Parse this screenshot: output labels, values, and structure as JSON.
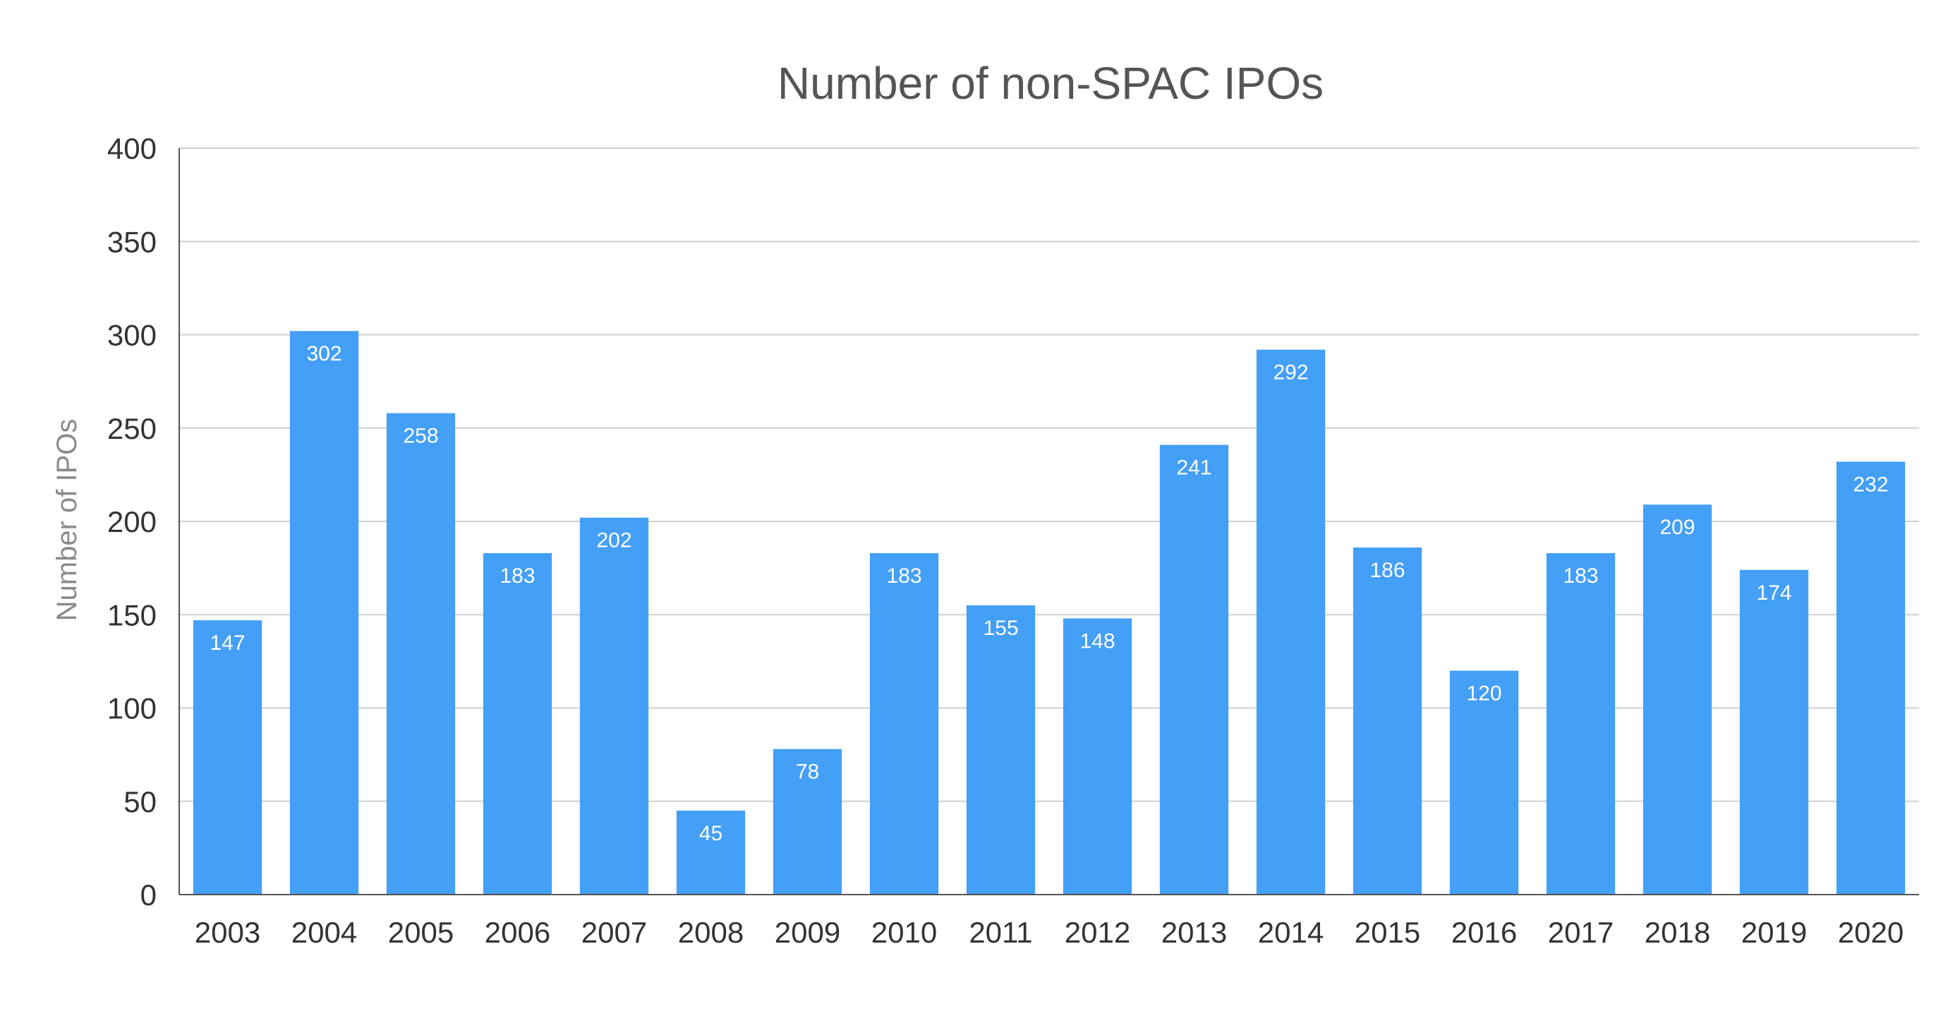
{
  "chart_data": {
    "type": "bar",
    "title": "Number of non-SPAC IPOs",
    "xlabel": "",
    "ylabel": "Number of IPOs",
    "categories": [
      "2003",
      "2004",
      "2005",
      "2006",
      "2007",
      "2008",
      "2009",
      "2010",
      "2011",
      "2012",
      "2013",
      "2014",
      "2015",
      "2016",
      "2017",
      "2018",
      "2019",
      "2020"
    ],
    "values": [
      147,
      302,
      258,
      183,
      202,
      45,
      78,
      183,
      155,
      148,
      241,
      292,
      186,
      120,
      183,
      209,
      174,
      232
    ],
    "ylim": [
      0,
      400
    ],
    "yticks": [
      0,
      50,
      100,
      150,
      200,
      250,
      300,
      350,
      400
    ],
    "grid": true,
    "legend": "none",
    "data_labels": true,
    "colors": {
      "bar": "#449ff7",
      "grid": "#d0d0d0",
      "title": "#555555",
      "ylabel": "#8a8a8a",
      "tick": "#333333",
      "data_label": "#ffffff"
    }
  }
}
